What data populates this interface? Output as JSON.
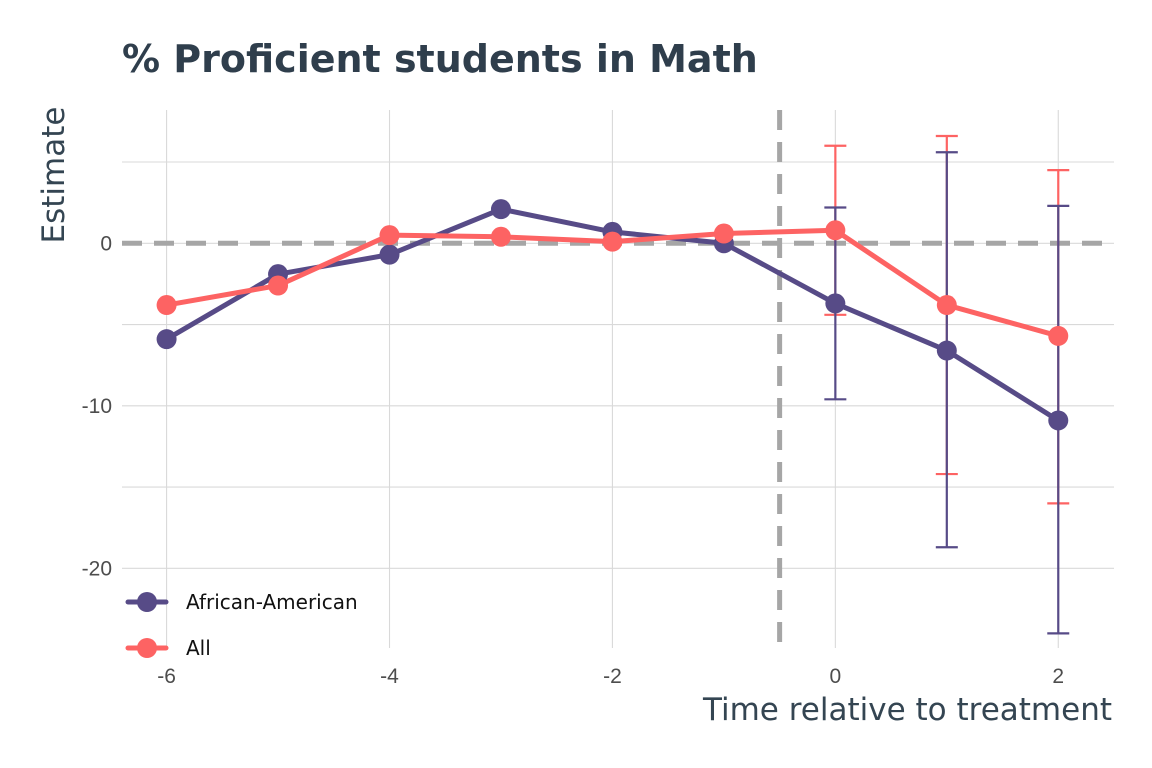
{
  "chart_data": {
    "type": "line",
    "title": "% Proficient students in Math",
    "xlabel": "Time relative to treatment",
    "ylabel": "Estimate",
    "x": [
      -6,
      -5,
      -4,
      -3,
      -2,
      -1,
      0,
      1,
      2
    ],
    "xlim": [
      -6.4,
      2.5
    ],
    "ylim": [
      -24.9,
      8.2
    ],
    "x_ticks": [
      -6,
      -4,
      -2,
      0,
      2
    ],
    "x_tick_labels": [
      "-6",
      "-4",
      "-2",
      "0",
      "2"
    ],
    "y_ticks": [
      0,
      -10,
      -20
    ],
    "y_tick_labels": [
      "0",
      "-10",
      "-20"
    ],
    "grid": true,
    "reference_lines": {
      "horizontal_zero": 0,
      "vertical_treatment": -0.5
    },
    "legend_position": "bottom-left",
    "series": [
      {
        "name": "African-American",
        "color": "#574b87",
        "values": [
          -5.9,
          -1.9,
          -0.7,
          2.1,
          0.7,
          0.0,
          -3.7,
          -6.6,
          -10.9
        ],
        "error_bars": [
          {
            "x": 0,
            "lower": -9.6,
            "upper": 2.2
          },
          {
            "x": 1,
            "lower": -18.7,
            "upper": 5.6
          },
          {
            "x": 2,
            "lower": -24.0,
            "upper": 2.3
          }
        ]
      },
      {
        "name": "All",
        "color": "#fd6363",
        "values": [
          -3.8,
          -2.6,
          0.5,
          0.4,
          0.1,
          0.6,
          0.8,
          -3.8,
          -5.7
        ],
        "error_bars": [
          {
            "x": 0,
            "lower": -4.4,
            "upper": 6.0
          },
          {
            "x": 1,
            "lower": -14.2,
            "upper": 6.6
          },
          {
            "x": 2,
            "lower": -16.0,
            "upper": 4.5
          }
        ]
      }
    ]
  }
}
